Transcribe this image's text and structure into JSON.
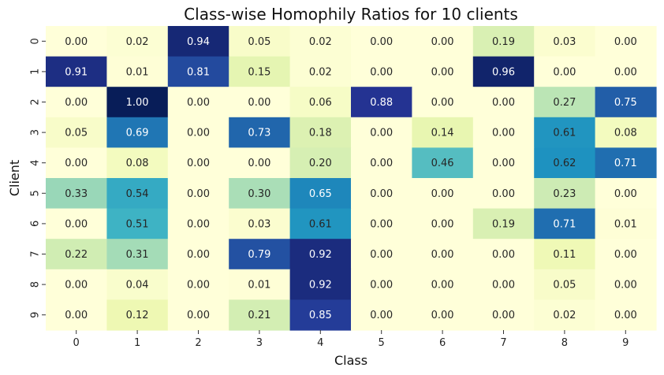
{
  "chart_data": {
    "type": "heatmap",
    "title": "Class-wise Homophily Ratios for 10 clients",
    "xlabel": "Class",
    "ylabel": "Client",
    "x_categories": [
      "0",
      "1",
      "2",
      "3",
      "4",
      "5",
      "6",
      "7",
      "8",
      "9"
    ],
    "y_categories": [
      "0",
      "1",
      "2",
      "3",
      "4",
      "5",
      "6",
      "7",
      "8",
      "9"
    ],
    "colormap": "YlGnBu",
    "value_range": [
      0,
      1
    ],
    "colorbar": false,
    "annotations": true,
    "values": [
      [
        0.0,
        0.02,
        0.94,
        0.05,
        0.02,
        0.0,
        0.0,
        0.19,
        0.03,
        0.0
      ],
      [
        0.91,
        0.01,
        0.81,
        0.15,
        0.02,
        0.0,
        0.0,
        0.96,
        0.0,
        0.0
      ],
      [
        0.0,
        1.0,
        0.0,
        0.0,
        0.06,
        0.88,
        0.0,
        0.0,
        0.27,
        0.75
      ],
      [
        0.05,
        0.69,
        0.0,
        0.73,
        0.18,
        0.0,
        0.14,
        0.0,
        0.61,
        0.08
      ],
      [
        0.0,
        0.08,
        0.0,
        0.0,
        0.2,
        0.0,
        0.46,
        0.0,
        0.62,
        0.71
      ],
      [
        0.33,
        0.54,
        0.0,
        0.3,
        0.65,
        0.0,
        0.0,
        0.0,
        0.23,
        0.0
      ],
      [
        0.0,
        0.51,
        0.0,
        0.03,
        0.61,
        0.0,
        0.0,
        0.19,
        0.71,
        0.01
      ],
      [
        0.22,
        0.31,
        0.0,
        0.79,
        0.92,
        0.0,
        0.0,
        0.0,
        0.11,
        0.0
      ],
      [
        0.0,
        0.04,
        0.0,
        0.01,
        0.92,
        0.0,
        0.0,
        0.0,
        0.05,
        0.0
      ],
      [
        0.0,
        0.12,
        0.0,
        0.21,
        0.85,
        0.0,
        0.0,
        0.0,
        0.02,
        0.0
      ]
    ]
  }
}
